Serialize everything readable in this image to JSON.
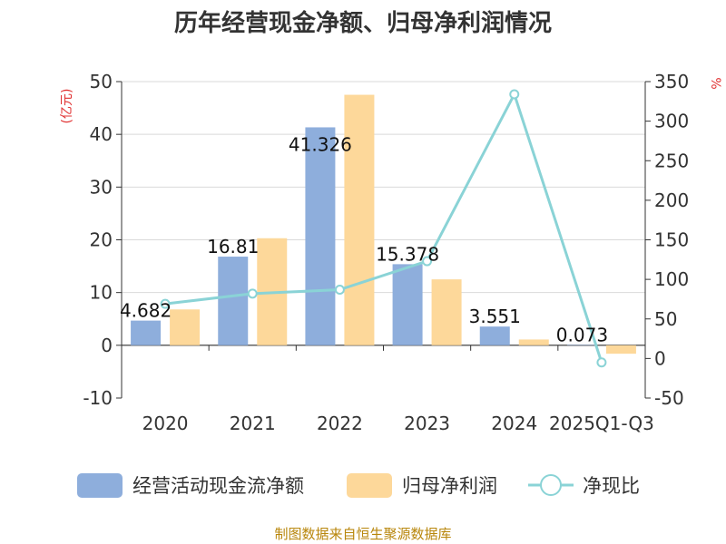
{
  "chart_data": {
    "type": "bar",
    "title": "历年经营现金净额、归母净利润情况",
    "categories": [
      "2020",
      "2021",
      "2022",
      "2023",
      "2024",
      "2025Q1-Q3"
    ],
    "series": [
      {
        "name": "经营活动现金流净额",
        "kind": "bar",
        "axis": "left",
        "color": "#8eaedc",
        "values": [
          4.682,
          16.81,
          41.326,
          15.378,
          3.551,
          0.073
        ],
        "labels": [
          "4.682",
          "16.81",
          "41.326",
          "15.378",
          "3.551",
          "0.073"
        ]
      },
      {
        "name": "归母净利润",
        "kind": "bar",
        "axis": "left",
        "color": "#fdd89a",
        "values": [
          6.8,
          20.3,
          47.5,
          12.5,
          1.1,
          -1.6
        ]
      },
      {
        "name": "净现比",
        "kind": "line",
        "axis": "right",
        "color": "#8ad3d6",
        "values": [
          69,
          82,
          87,
          123,
          334,
          -5
        ]
      }
    ],
    "y_left": {
      "unit_label": "(亿元)",
      "ylim": [
        -10,
        50
      ],
      "ticks": [
        -10,
        0,
        10,
        20,
        30,
        40,
        50
      ]
    },
    "y_right": {
      "unit_label": "%",
      "ylim": [
        -50,
        350
      ],
      "ticks": [
        -50,
        0,
        50,
        100,
        150,
        200,
        250,
        300,
        350
      ]
    },
    "legend_position": "bottom"
  },
  "source": "制图数据来自恒生聚源数据库"
}
